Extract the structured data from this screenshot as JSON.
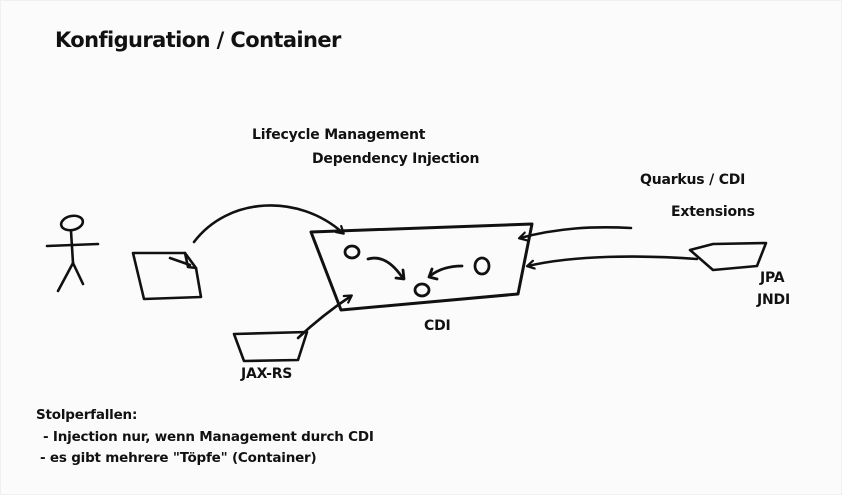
{
  "title": "Konfiguration / Container",
  "labels": {
    "lifecycle": "Lifecycle Management",
    "dependency_injection": "Dependency Injection",
    "quarkus_cdi": "Quarkus / CDI",
    "extensions": "Extensions",
    "cdi": "CDI",
    "jpa": "JPA",
    "jndi": "JNDI",
    "jax_rs": "JAX-RS"
  },
  "notes": {
    "heading": "Stolperfallen:",
    "items": [
      "- Injection nur, wenn Management durch CDI",
      "- es gibt mehrere \"Töpfe\" (Container)"
    ]
  },
  "colors": {
    "ink": "#111111",
    "background": "#fbfbfb"
  }
}
